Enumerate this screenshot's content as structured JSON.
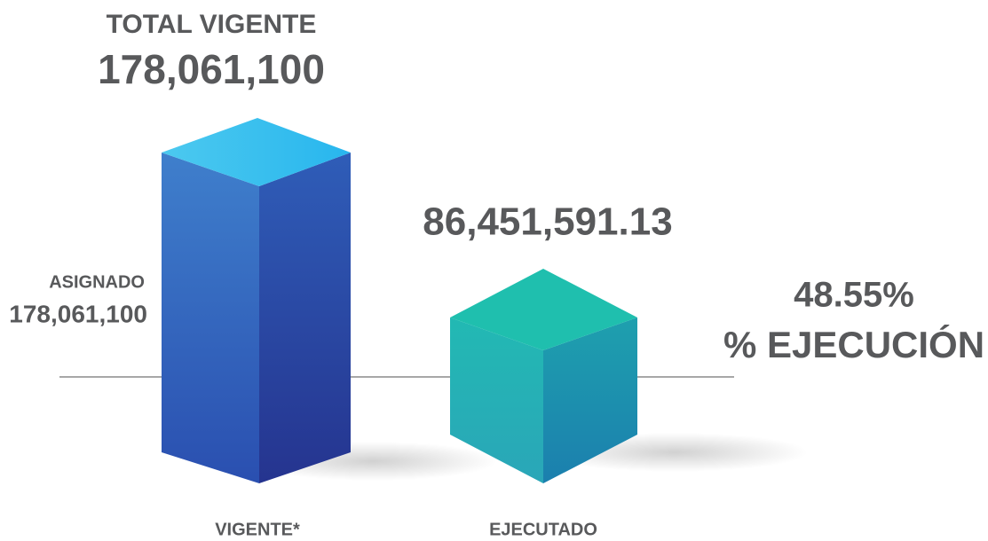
{
  "total": {
    "label": "TOTAL VIGENTE",
    "amount": "178,061,100"
  },
  "asignado": {
    "label": "ASIGNADO",
    "amount": "178,061,100"
  },
  "ejecutado_amount": "86,451,591.13",
  "execution": {
    "percent": "48.55%",
    "label": "% EJECUCIÓN"
  },
  "bars": [
    {
      "label": "VIGENTE*"
    },
    {
      "label": "EJECUTADO"
    }
  ]
}
